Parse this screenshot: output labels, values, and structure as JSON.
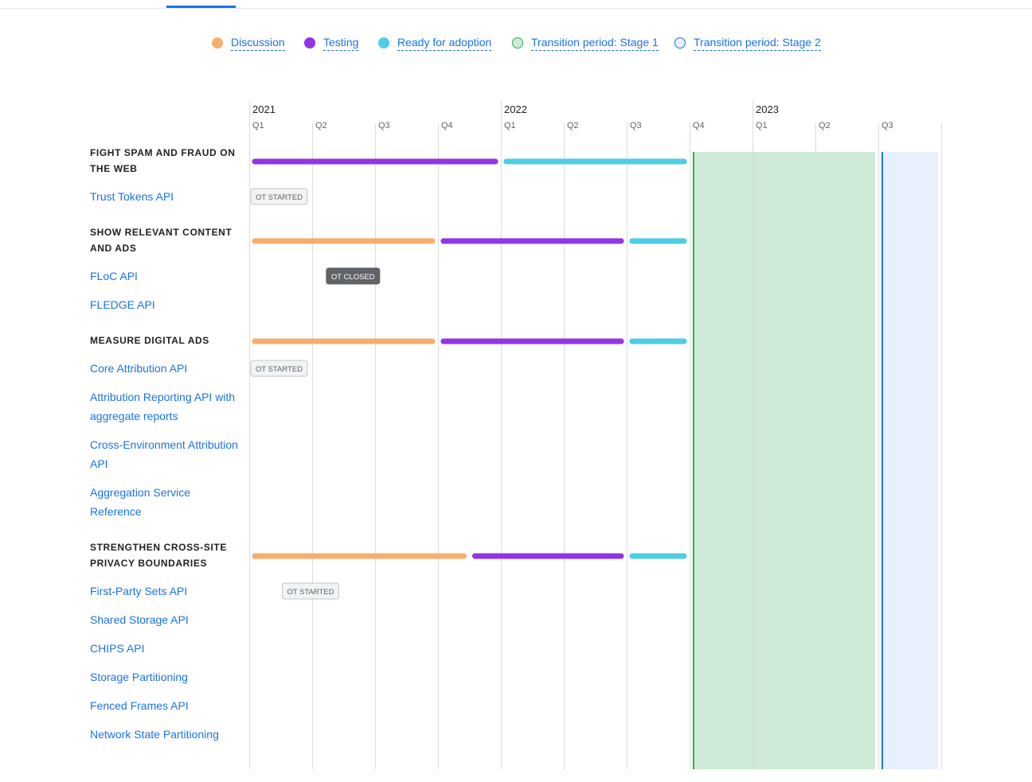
{
  "legend": [
    {
      "label": "Discussion",
      "color": "#f6ad6e",
      "style": "filled"
    },
    {
      "label": "Testing",
      "color": "#9334e6",
      "style": "filled"
    },
    {
      "label": "Ready for adoption",
      "color": "#4ecde6",
      "style": "filled"
    },
    {
      "label": "Transition period: Stage 1",
      "color": "#34a853",
      "fill": "#ceead6",
      "style": "outlined"
    },
    {
      "label": "Transition period: Stage 2",
      "color": "#1a73e8",
      "fill": "#e8f0fe",
      "style": "outlined"
    }
  ],
  "sections": [
    {
      "title": "FIGHT SPAM AND FRAUD ON THE WEB",
      "apis": [
        "Trust Tokens API"
      ]
    },
    {
      "title": "SHOW RELEVANT CONTENT AND ADS",
      "apis": [
        "FLoC API",
        "FLEDGE API"
      ]
    },
    {
      "title": "MEASURE DIGITAL ADS",
      "apis": [
        "Core Attribution API",
        "Attribution Reporting API with aggregate reports",
        "Cross-Environment Attribution API",
        "Aggregation Service Reference"
      ]
    },
    {
      "title": "STRENGTHEN CROSS-SITE PRIVACY BOUNDARIES",
      "apis": [
        "First-Party Sets API",
        "Shared Storage API",
        "CHIPS API",
        "Storage Partitioning",
        "Fenced Frames API",
        "Network State Partitioning"
      ]
    }
  ],
  "chart_data": {
    "type": "gantt",
    "years": [
      {
        "label": "2021",
        "quarter_index": 0
      },
      {
        "label": "2022",
        "quarter_index": 4
      },
      {
        "label": "2023",
        "quarter_index": 8
      }
    ],
    "quarters": [
      "Q1",
      "Q2",
      "Q3",
      "Q4",
      "Q1",
      "Q2",
      "Q3",
      "Q4",
      "Q1",
      "Q2",
      "Q3"
    ],
    "phase_colors": {
      "discussion": "#f6ad6e",
      "testing": "#9334e6",
      "ready": "#4ecde6"
    },
    "transitions": [
      {
        "label": "Transition period: Stage 1",
        "start": 7.05,
        "end": 9.95,
        "stroke": "#34a853",
        "fill": "#ceead6"
      },
      {
        "label": "Transition period: Stage 2",
        "start": 10.05,
        "end": 10.95,
        "stroke": "#1a73e8",
        "fill": "#e8f0fe"
      }
    ],
    "section_bars": [
      {
        "section": "FIGHT SPAM AND FRAUD ON THE WEB",
        "bars": [
          {
            "phase": "testing",
            "start": 0.05,
            "end": 3.95
          },
          {
            "phase": "ready",
            "start": 4.05,
            "end": 6.95
          }
        ]
      },
      {
        "section": "SHOW RELEVANT CONTENT AND ADS",
        "bars": [
          {
            "phase": "discussion",
            "start": 0.05,
            "end": 2.95
          },
          {
            "phase": "testing",
            "start": 3.05,
            "end": 5.95
          },
          {
            "phase": "ready",
            "start": 6.05,
            "end": 6.95
          }
        ]
      },
      {
        "section": "MEASURE DIGITAL ADS",
        "bars": [
          {
            "phase": "discussion",
            "start": 0.05,
            "end": 2.95
          },
          {
            "phase": "testing",
            "start": 3.05,
            "end": 5.95
          },
          {
            "phase": "ready",
            "start": 6.05,
            "end": 6.95
          }
        ]
      },
      {
        "section": "STRENGTHEN CROSS-SITE PRIVACY BOUNDARIES",
        "bars": [
          {
            "phase": "discussion",
            "start": 0.05,
            "end": 3.45
          },
          {
            "phase": "testing",
            "start": 3.55,
            "end": 5.95
          },
          {
            "phase": "ready",
            "start": 6.05,
            "end": 6.95
          }
        ]
      }
    ],
    "milestones": [
      {
        "api": "Trust Tokens API",
        "label": "OT STARTED",
        "at": 0.0,
        "style": "light"
      },
      {
        "api": "FLoC API",
        "label": "OT CLOSED",
        "at": 1.2,
        "style": "dark"
      },
      {
        "api": "Core Attribution API",
        "label": "OT STARTED",
        "at": 0.0,
        "style": "light"
      },
      {
        "api": "First-Party Sets API",
        "label": "OT STARTED",
        "at": 0.5,
        "style": "light"
      }
    ]
  }
}
